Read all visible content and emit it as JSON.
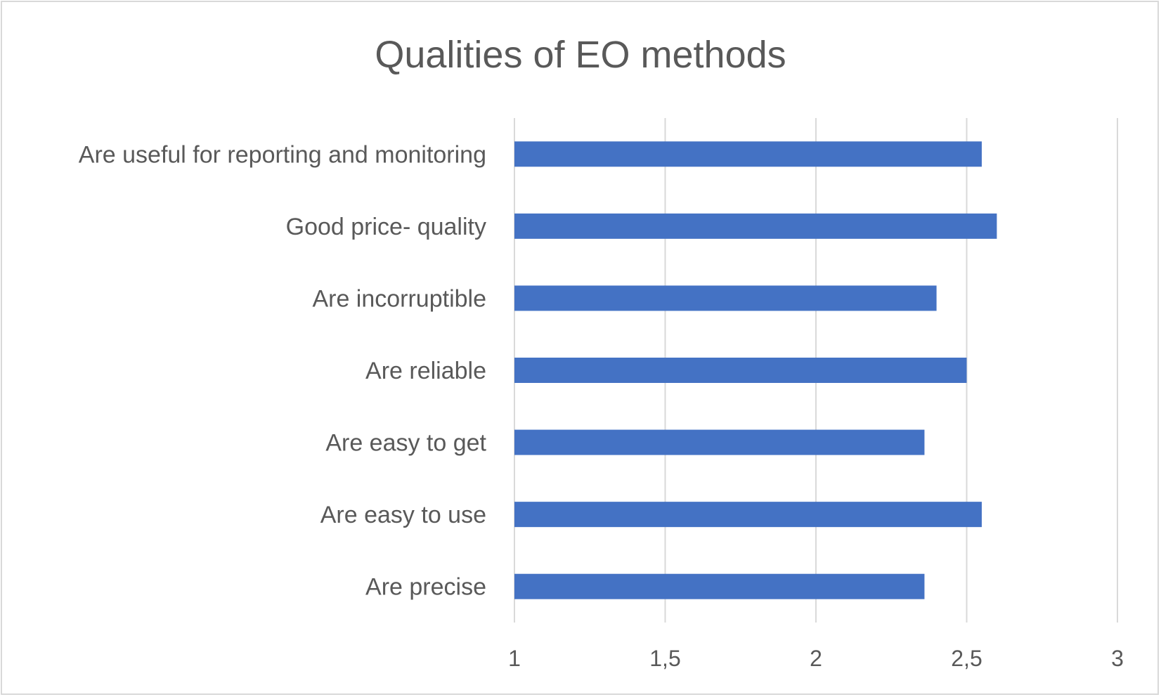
{
  "chart_data": {
    "type": "bar",
    "orientation": "horizontal",
    "title": "Qualities of EO methods",
    "categories": [
      "Are useful for reporting and monitoring",
      "Good price- quality",
      "Are incorruptible",
      "Are reliable",
      "Are easy to get",
      "Are easy to use",
      "Are precise"
    ],
    "values": [
      2.55,
      2.6,
      2.4,
      2.5,
      2.36,
      2.55,
      2.36
    ],
    "xlim": [
      1,
      3
    ],
    "x_ticks": [
      1,
      1.5,
      2,
      2.5,
      3
    ],
    "x_tick_labels": [
      "1",
      "1,5",
      "2",
      "2,5",
      "3"
    ],
    "xlabel": "",
    "ylabel": "",
    "grid": "vertical",
    "legend": "none",
    "bar_color": "#4472c4",
    "grid_color": "#d9d9d9",
    "text_color": "#595959"
  }
}
